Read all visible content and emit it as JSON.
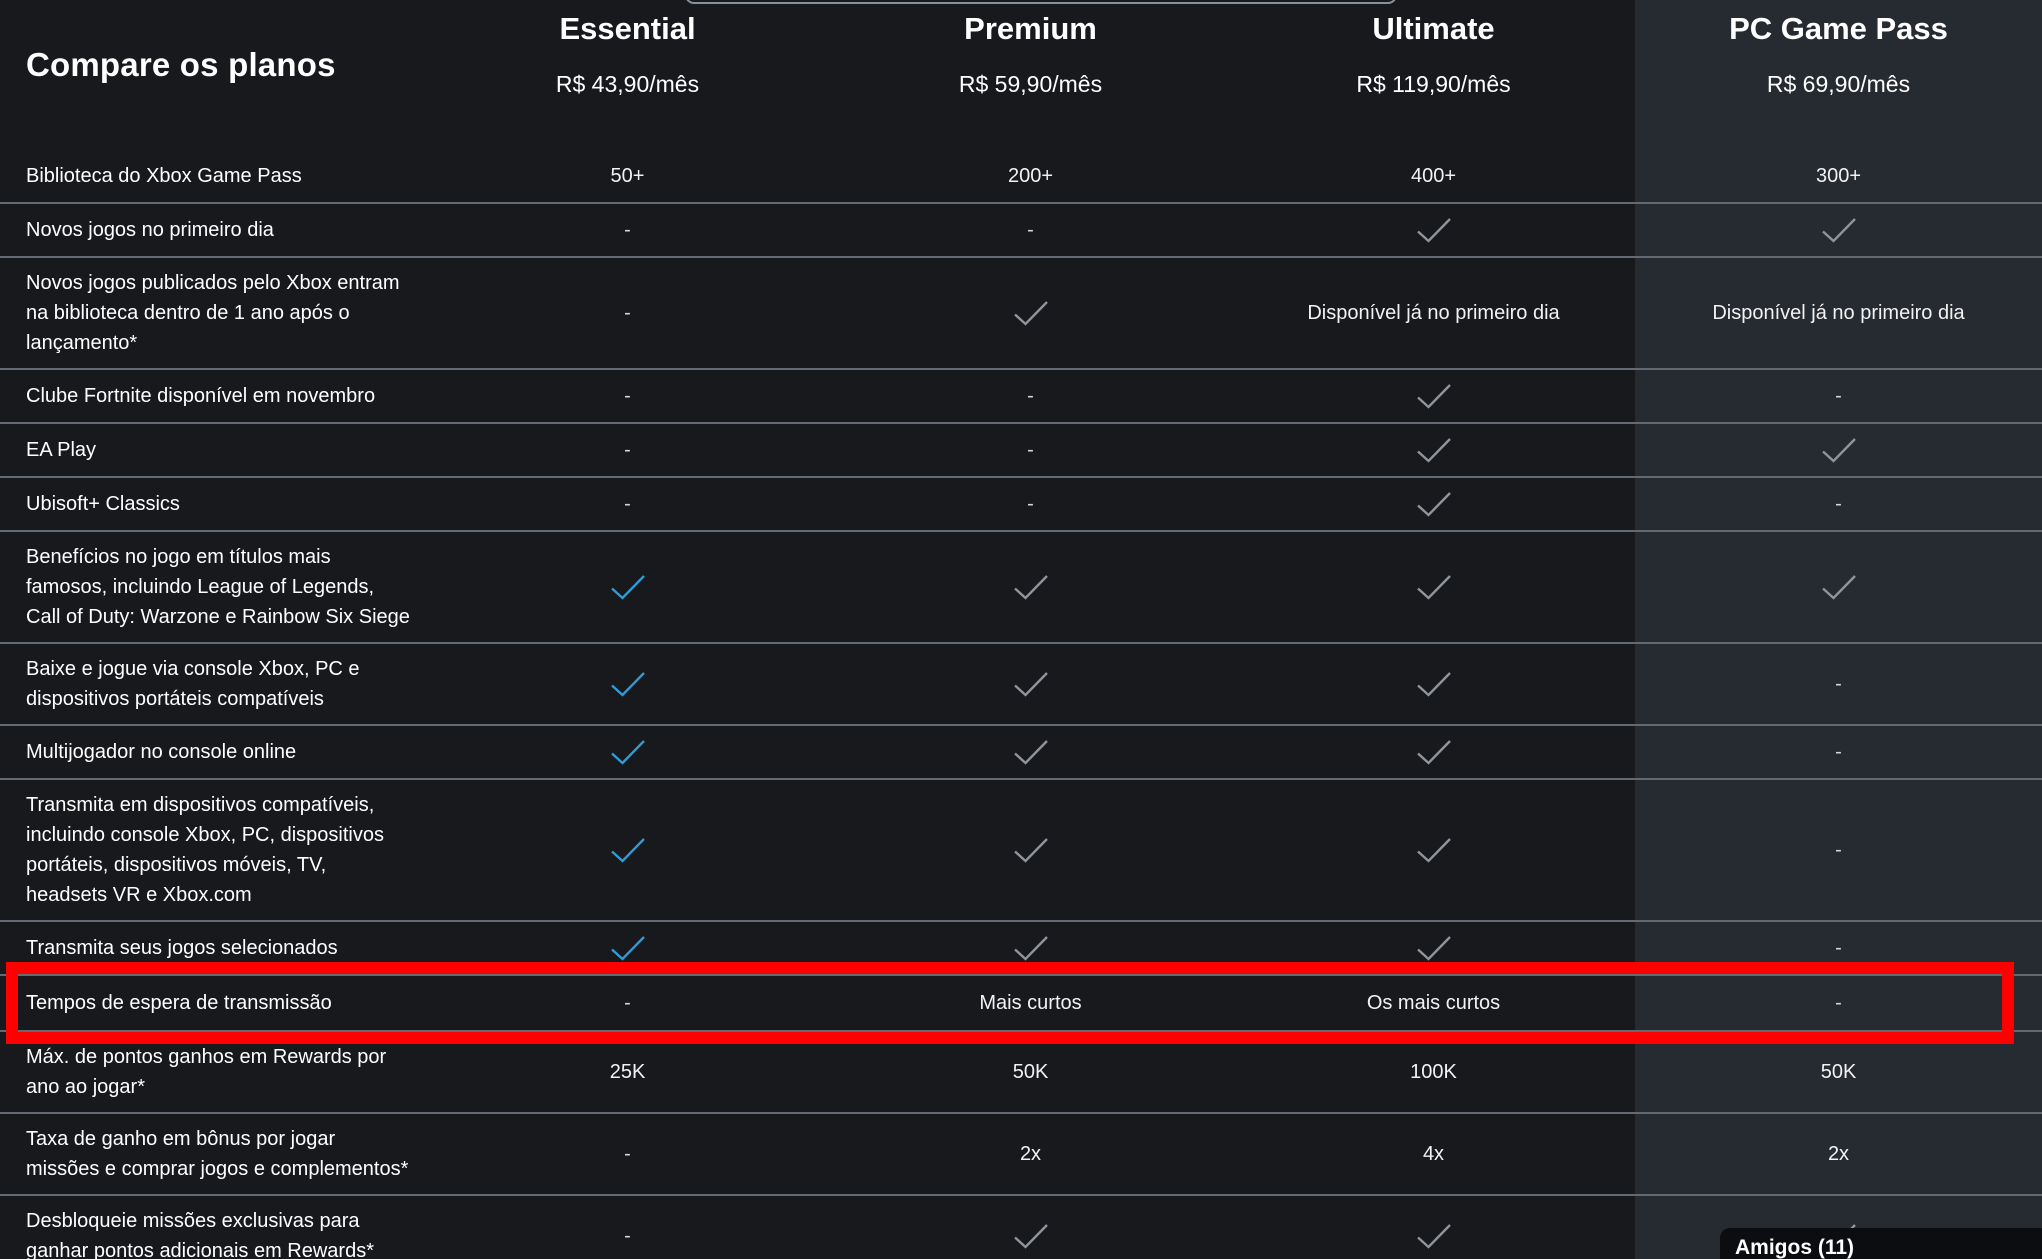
{
  "title": "Compare os planos",
  "plans": [
    {
      "name": "Essential",
      "price": "R$ 43,90/mês"
    },
    {
      "name": "Premium",
      "price": "R$ 59,90/mês"
    },
    {
      "name": "Ultimate",
      "price": "R$ 119,90/mês"
    },
    {
      "name": "PC Game Pass",
      "price": "R$ 69,90/mês",
      "column_highlighted": true
    }
  ],
  "rows": [
    {
      "label": "Biblioteca do Xbox Game Pass",
      "values": [
        "50+",
        "200+",
        "400+",
        "300+"
      ]
    },
    {
      "label": "Novos jogos no primeiro dia",
      "values": [
        "-",
        "-",
        "check",
        "check"
      ]
    },
    {
      "label": "Novos jogos publicados pelo Xbox entram na biblioteca dentro de 1 ano após o lançamento*",
      "values": [
        "-",
        "check",
        "Disponível já no primeiro dia",
        "Disponível já no primeiro dia"
      ]
    },
    {
      "label": "Clube Fortnite disponível em novembro",
      "values": [
        "-",
        "-",
        "check",
        "-"
      ]
    },
    {
      "label": "EA Play",
      "values": [
        "-",
        "-",
        "check",
        "check"
      ]
    },
    {
      "label": "Ubisoft+ Classics",
      "values": [
        "-",
        "-",
        "check",
        "-"
      ]
    },
    {
      "label": "Benefícios no jogo em títulos mais famosos, incluindo League of Legends, Call of Duty: Warzone e Rainbow Six Siege",
      "values": [
        "check-blue",
        "check",
        "check",
        "check"
      ]
    },
    {
      "label": "Baixe e jogue via console Xbox, PC e dispositivos portáteis compatíveis",
      "values": [
        "check-blue",
        "check",
        "check",
        "-"
      ]
    },
    {
      "label": "Multijogador no console online",
      "values": [
        "check-blue",
        "check",
        "check",
        "-"
      ]
    },
    {
      "label": "Transmita em dispositivos compatíveis, incluindo console Xbox, PC, dispositivos portáteis, dispositivos móveis, TV, headsets VR e Xbox.com",
      "values": [
        "check-blue",
        "check",
        "check",
        "-"
      ]
    },
    {
      "label": "Transmita seus jogos selecionados",
      "values": [
        "check-blue",
        "check",
        "check",
        "-"
      ]
    },
    {
      "label": "Tempos de espera de transmissão",
      "values": [
        "-",
        "Mais curtos",
        "Os mais curtos",
        "-"
      ],
      "highlighted": true
    },
    {
      "label": "Máx. de pontos ganhos em Rewards por ano ao jogar*",
      "values": [
        "25K",
        "50K",
        "100K",
        "50K"
      ]
    },
    {
      "label": "Taxa de ganho em bônus por jogar missões e comprar jogos e complementos*",
      "values": [
        "-",
        "2x",
        "4x",
        "2x"
      ]
    },
    {
      "label": "Desbloqueie missões exclusivas para ganhar pontos adicionais em Rewards*",
      "values": [
        "-",
        "check",
        "check",
        "check"
      ]
    }
  ],
  "friends_popup": {
    "label": "Amigos (11)"
  },
  "icons": {
    "check": "✓"
  },
  "colors": {
    "background": "#17191d",
    "pc_column_background": "#262a31",
    "divider": "#646a73",
    "check_gray": "#90959c",
    "check_blue": "#2f9cd8",
    "highlight_red": "#ff0000",
    "popup_background": "#0c0d10"
  }
}
